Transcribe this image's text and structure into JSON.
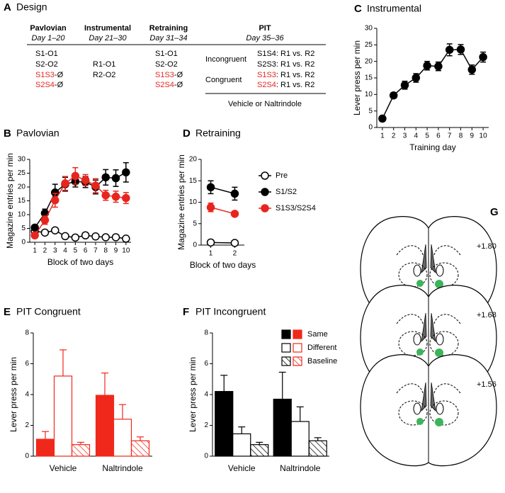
{
  "design": {
    "label": "A",
    "title": "Design",
    "columns": [
      {
        "name": "Pavlovian",
        "days": "Day 1–20",
        "items": [
          {
            "text": [
              "S1-O1"
            ],
            "colors": [
              "#000"
            ]
          },
          {
            "text": [
              "S2-O2"
            ],
            "colors": [
              "#000"
            ]
          },
          {
            "text": [
              "S1S3",
              "-Ø"
            ],
            "colors": [
              "#e8251d",
              "#000"
            ]
          },
          {
            "text": [
              "S2S4",
              "-Ø"
            ],
            "colors": [
              "#e8251d",
              "#000"
            ]
          }
        ]
      },
      {
        "name": "Instrumental",
        "days": "Day 21–30",
        "items": [
          {
            "text": [
              "R1-O1"
            ],
            "colors": [
              "#000"
            ]
          },
          {
            "text": [
              "R2-O2"
            ],
            "colors": [
              "#000"
            ]
          }
        ]
      },
      {
        "name": "Retraining",
        "days": "Day 31–34",
        "items": [
          {
            "text": [
              "S1-O1"
            ],
            "colors": [
              "#000"
            ]
          },
          {
            "text": [
              "S2-O2"
            ],
            "colors": [
              "#000"
            ]
          },
          {
            "text": [
              "S1S3",
              "-Ø"
            ],
            "colors": [
              "#e8251d",
              "#000"
            ]
          },
          {
            "text": [
              "S2S4",
              "-Ø"
            ],
            "colors": [
              "#e8251d",
              "#000"
            ]
          }
        ]
      }
    ],
    "pit": {
      "name": "PIT",
      "days": "Day 35–36",
      "groups": [
        {
          "name": "Incongruent",
          "color": "#000",
          "items": [
            {
              "text": [
                "S1S4",
                ": R1 vs. R2"
              ],
              "colors": [
                "#000",
                "#000"
              ]
            },
            {
              "text": [
                "S2S3",
                ": R1 vs. R2"
              ],
              "colors": [
                "#000",
                "#000"
              ]
            }
          ]
        },
        {
          "name": "Congruent",
          "color": "#e8251d",
          "items": [
            {
              "text": [
                "S1S3",
                ": R1 vs. R2"
              ],
              "colors": [
                "#e8251d",
                "#000"
              ]
            },
            {
              "text": [
                "S2S4",
                ": R1 vs. R2"
              ],
              "colors": [
                "#e8251d",
                "#000"
              ]
            }
          ]
        }
      ],
      "footer": "Vehicle or Naltrindole"
    }
  },
  "chart_data": [
    {
      "type": "line",
      "label": "B",
      "title": "Pavlovian",
      "xlabel": "Block of two days",
      "ylabel": "Magazine entries per min",
      "x": [
        1,
        2,
        3,
        4,
        5,
        6,
        7,
        8,
        9,
        10
      ],
      "xlim": [
        0.5,
        10.5
      ],
      "xticks": [
        1,
        2,
        3,
        4,
        5,
        6,
        7,
        8,
        9,
        10
      ],
      "ylim": [
        0,
        30
      ],
      "yticks": [
        0,
        5,
        10,
        15,
        20,
        25,
        30
      ],
      "series": [
        {
          "color": "#000",
          "marker_fill": "#fff",
          "values": [
            4,
            3.5,
            4.3,
            2.2,
            1.7,
            2.5,
            2.1,
            1.8,
            1.8,
            1.3
          ]
        },
        {
          "color": "#000",
          "marker_fill": "#000",
          "values": [
            5.3,
            10.5,
            18,
            21,
            22,
            21.8,
            20,
            23.5,
            23.2,
            25.3
          ],
          "errors": [
            0.7,
            1.5,
            3,
            2.5,
            2,
            2,
            2.5,
            2.8,
            3,
            3.5
          ]
        },
        {
          "color": "#e8251d",
          "marker_fill": "#e8251d",
          "values": [
            2.5,
            8,
            15.2,
            21.3,
            24,
            22.5,
            20.5,
            17,
            16.5,
            16
          ],
          "errors": [
            0.5,
            1.5,
            2.5,
            2.5,
            3,
            2,
            2.5,
            1.8,
            2,
            2
          ]
        }
      ]
    },
    {
      "type": "line",
      "label": "C",
      "title": "Instrumental",
      "xlabel": "Training day",
      "ylabel": "Lever press per min",
      "x": [
        1,
        2,
        3,
        4,
        5,
        6,
        7,
        8,
        9,
        10
      ],
      "xlim": [
        0.5,
        10.5
      ],
      "xticks": [
        1,
        2,
        3,
        4,
        5,
        6,
        7,
        8,
        9,
        10
      ],
      "ylim": [
        0,
        30
      ],
      "yticks": [
        0,
        5,
        10,
        15,
        20,
        25,
        30
      ],
      "series": [
        {
          "color": "#000",
          "marker_fill": "#000",
          "values": [
            2.7,
            9.7,
            12.8,
            15,
            18.7,
            18.5,
            23.5,
            23.6,
            17.5,
            21.3
          ],
          "errors": [
            0.8,
            0.8,
            1.2,
            1.3,
            1.3,
            1.3,
            1.8,
            1.5,
            1.4,
            1.5
          ]
        }
      ]
    },
    {
      "type": "line",
      "label": "D",
      "title": "Retraining",
      "xlabel": "Block of two days",
      "ylabel": "Magazine entries per min",
      "x": [
        1,
        2
      ],
      "xlim": [
        0.6,
        2.4
      ],
      "xticks": [
        1,
        2
      ],
      "ylim": [
        0,
        20
      ],
      "yticks": [
        0,
        5,
        10,
        15,
        20
      ],
      "legend": "right",
      "series": [
        {
          "name": "Pre",
          "color": "#000",
          "marker_fill": "#fff",
          "values": [
            0.6,
            0.5
          ]
        },
        {
          "name": "S1/S2",
          "color": "#000",
          "marker_fill": "#000",
          "values": [
            13.5,
            12
          ],
          "errors": [
            1.5,
            1.5
          ]
        },
        {
          "name": "S1S3/S2S4",
          "color": "#e8251d",
          "marker_fill": "#e8251d",
          "values": [
            8.8,
            7.3
          ],
          "errors": [
            1,
            0.5
          ]
        }
      ]
    },
    {
      "type": "bar",
      "label": "E",
      "title": "PIT Congruent",
      "title_color": "#e8251d",
      "ylabel": "Lever press per min",
      "categories": [
        "Vehicle",
        "Naltrindole"
      ],
      "ylim": [
        0,
        8
      ],
      "yticks": [
        0,
        2,
        4,
        6,
        8
      ],
      "series": [
        {
          "color": "#f0281c",
          "fill": "solid",
          "values": [
            1.1,
            3.95
          ],
          "errors": [
            0.5,
            1.45
          ]
        },
        {
          "color": "#f0281c",
          "fill": "open",
          "values": [
            5.2,
            2.4
          ],
          "errors": [
            1.7,
            0.95
          ]
        },
        {
          "color": "#f0281c",
          "fill": "hatched",
          "values": [
            0.75,
            1.0
          ],
          "errors": [
            0.15,
            0.25
          ]
        }
      ]
    },
    {
      "type": "bar",
      "label": "F",
      "title": "PIT Incongruent",
      "title_color": "#000",
      "ylabel": "Lever press per min",
      "categories": [
        "Vehicle",
        "Naltrindole"
      ],
      "ylim": [
        0,
        8
      ],
      "yticks": [
        0,
        2,
        4,
        6,
        8
      ],
      "legend": "right",
      "legend_colors": [
        "#000",
        "#f0281c"
      ],
      "series": [
        {
          "name": "Same",
          "color": "#000",
          "fill": "solid",
          "values": [
            4.2,
            3.7
          ],
          "errors": [
            1.05,
            1.75
          ]
        },
        {
          "name": "Different",
          "color": "#000",
          "fill": "open",
          "values": [
            1.45,
            2.25
          ],
          "errors": [
            0.45,
            0.95
          ]
        },
        {
          "name": "Baseline",
          "color": "#000",
          "fill": "hatched",
          "values": [
            0.75,
            1.0
          ],
          "errors": [
            0.15,
            0.2
          ]
        }
      ]
    }
  ],
  "brain": {
    "label": "G",
    "sections": [
      "+1.80",
      "+1.68",
      "+1.56"
    ]
  }
}
